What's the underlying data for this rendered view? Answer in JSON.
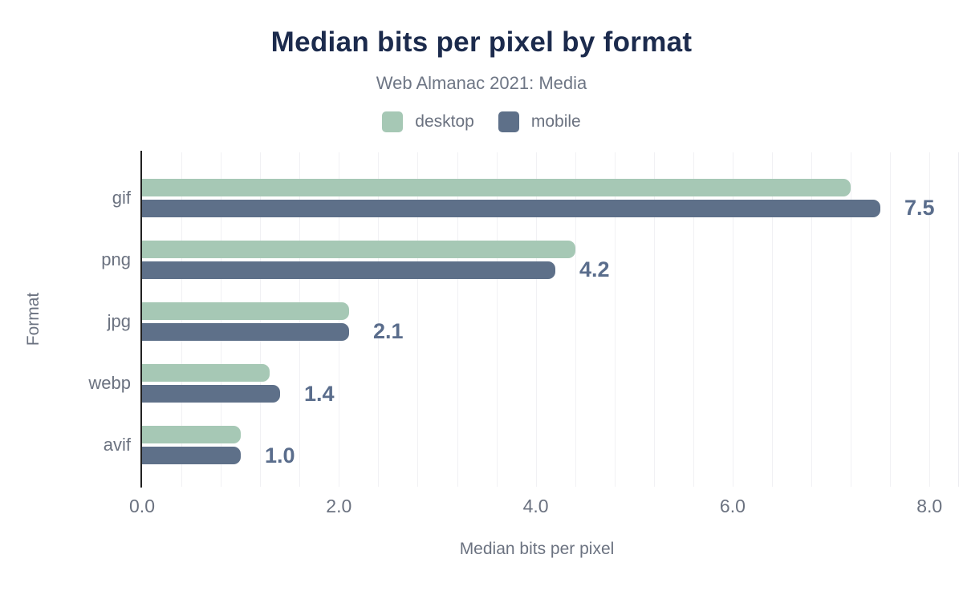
{
  "header": {
    "title": "Median bits per pixel by format",
    "subtitle": "Web Almanac 2021: Media"
  },
  "legend": [
    {
      "label": "desktop",
      "color": "#a6c8b5"
    },
    {
      "label": "mobile",
      "color": "#5e7089"
    }
  ],
  "colors": {
    "title": "#1c2b4d",
    "subtitle": "#6e7685",
    "axis_text": "#6b7280",
    "desktop_bar": "#a6c8b5",
    "mobile_bar": "#5e7089",
    "value_label": "#5a6d8c",
    "gridline": "#f1f1f4",
    "axis_line": "#212121"
  },
  "chart_data": {
    "type": "bar",
    "orientation": "horizontal",
    "title": "Median bits per pixel by format",
    "subtitle": "Web Almanac 2021: Media",
    "categories": [
      "gif",
      "png",
      "jpg",
      "webp",
      "avif"
    ],
    "series": [
      {
        "name": "desktop",
        "values": [
          7.2,
          4.4,
          2.1,
          1.3,
          1.0
        ]
      },
      {
        "name": "mobile",
        "values": [
          7.5,
          4.2,
          2.1,
          1.4,
          1.0
        ]
      }
    ],
    "value_labels": [
      "7.5",
      "4.2",
      "2.1",
      "1.4",
      "1.0"
    ],
    "value_labels_series": "mobile",
    "xlabel": "Median bits per pixel",
    "ylabel": "Format",
    "xlim": [
      0,
      8.3
    ],
    "x_ticks": [
      {
        "value": 0,
        "label": "0.0"
      },
      {
        "value": 2,
        "label": "2.0"
      },
      {
        "value": 4,
        "label": "4.0"
      },
      {
        "value": 6,
        "label": "6.0"
      },
      {
        "value": 8,
        "label": "8.0"
      }
    ],
    "grid": {
      "minor_step": 0.4,
      "visible": true
    },
    "legend_position": "top"
  }
}
